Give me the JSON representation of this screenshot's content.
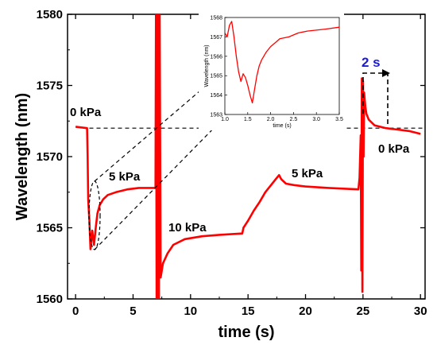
{
  "chart_data": [
    {
      "type": "line",
      "xlabel": "time (s)",
      "ylabel": "Wavelength (nm)",
      "xlim": [
        -0.7,
        30.4
      ],
      "ylim": [
        1560,
        1580
      ],
      "xticks": [
        0,
        5,
        10,
        15,
        20,
        25,
        30
      ],
      "yticks": [
        1560,
        1565,
        1570,
        1575,
        1580
      ],
      "grid": false,
      "line_color": "#ff0000",
      "series": [
        {
          "x": [
            0,
            1.0,
            1.05,
            1.1,
            1.2,
            1.3,
            1.45,
            1.6,
            1.75,
            1.9,
            2.1,
            2.4,
            2.8,
            3.5,
            4.5,
            5.5,
            6.8,
            6.95,
            7.0,
            7.05,
            7.1,
            7.15,
            7.2,
            7.25,
            7.3,
            7.4,
            7.6,
            8.0,
            8.5,
            9.5,
            11,
            12.5,
            14.5,
            14.6,
            15,
            15.5,
            16,
            16.5,
            17,
            17.5,
            17.7,
            17.9,
            18.3,
            19,
            20,
            22,
            24.6,
            24.7,
            24.8,
            24.85,
            24.9,
            24.95,
            25.0,
            25.05,
            25.1,
            25.15,
            25.2,
            25.3,
            25.5,
            26,
            27,
            28,
            29,
            30
          ],
          "y": [
            1572.1,
            1572.0,
            1570,
            1567,
            1565.5,
            1563.5,
            1564.8,
            1563.8,
            1565,
            1566.0,
            1566.6,
            1567.0,
            1567.3,
            1567.5,
            1567.7,
            1567.8,
            1567.8,
            1567.8,
            1582,
            1560,
            1582,
            1560,
            1582,
            1560,
            1582,
            1561.5,
            1562.5,
            1563.2,
            1563.8,
            1564.2,
            1564.4,
            1564.5,
            1564.6,
            1565,
            1565.5,
            1566.2,
            1566.8,
            1567.5,
            1568.0,
            1568.5,
            1568.7,
            1568.4,
            1568.1,
            1568.0,
            1567.9,
            1567.8,
            1567.7,
            1568.5,
            1571.5,
            1562,
            1575.5,
            1560.5,
            1575.3,
            1570,
            1574.5,
            1574,
            1573.5,
            1573,
            1572.6,
            1572.2,
            1572.0,
            1571.9,
            1571.8,
            1571.6
          ]
        }
      ],
      "annotations": [
        "0 kPa",
        "5 kPa",
        "10 kPa",
        "5 kPa",
        "0 kPa",
        "2 s"
      ],
      "reference_line_y": 1572
    },
    {
      "type": "line",
      "xlabel": "time (s)",
      "ylabel": "Wavelength (nm)",
      "xlim": [
        1.0,
        3.5
      ],
      "ylim": [
        1563,
        1568
      ],
      "xticks": [
        1.0,
        1.5,
        2.0,
        2.5,
        3.0,
        3.5
      ],
      "yticks": [
        1563,
        1564,
        1565,
        1566,
        1567,
        1568
      ],
      "grid": false,
      "line_color": "#ff0000",
      "series": [
        {
          "x": [
            1.0,
            1.05,
            1.1,
            1.15,
            1.2,
            1.25,
            1.3,
            1.35,
            1.4,
            1.45,
            1.5,
            1.55,
            1.6,
            1.65,
            1.7,
            1.75,
            1.8,
            1.9,
            2.0,
            2.1,
            2.2,
            2.4,
            2.6,
            2.8,
            3.0,
            3.2,
            3.5
          ],
          "y": [
            1567.2,
            1567.0,
            1567.6,
            1567.8,
            1567.0,
            1566.0,
            1565.2,
            1564.7,
            1565.1,
            1564.9,
            1564.5,
            1564.0,
            1563.6,
            1564.3,
            1565.0,
            1565.5,
            1565.8,
            1566.2,
            1566.5,
            1566.7,
            1566.9,
            1567.0,
            1567.2,
            1567.3,
            1567.35,
            1567.4,
            1567.5
          ]
        }
      ]
    }
  ]
}
